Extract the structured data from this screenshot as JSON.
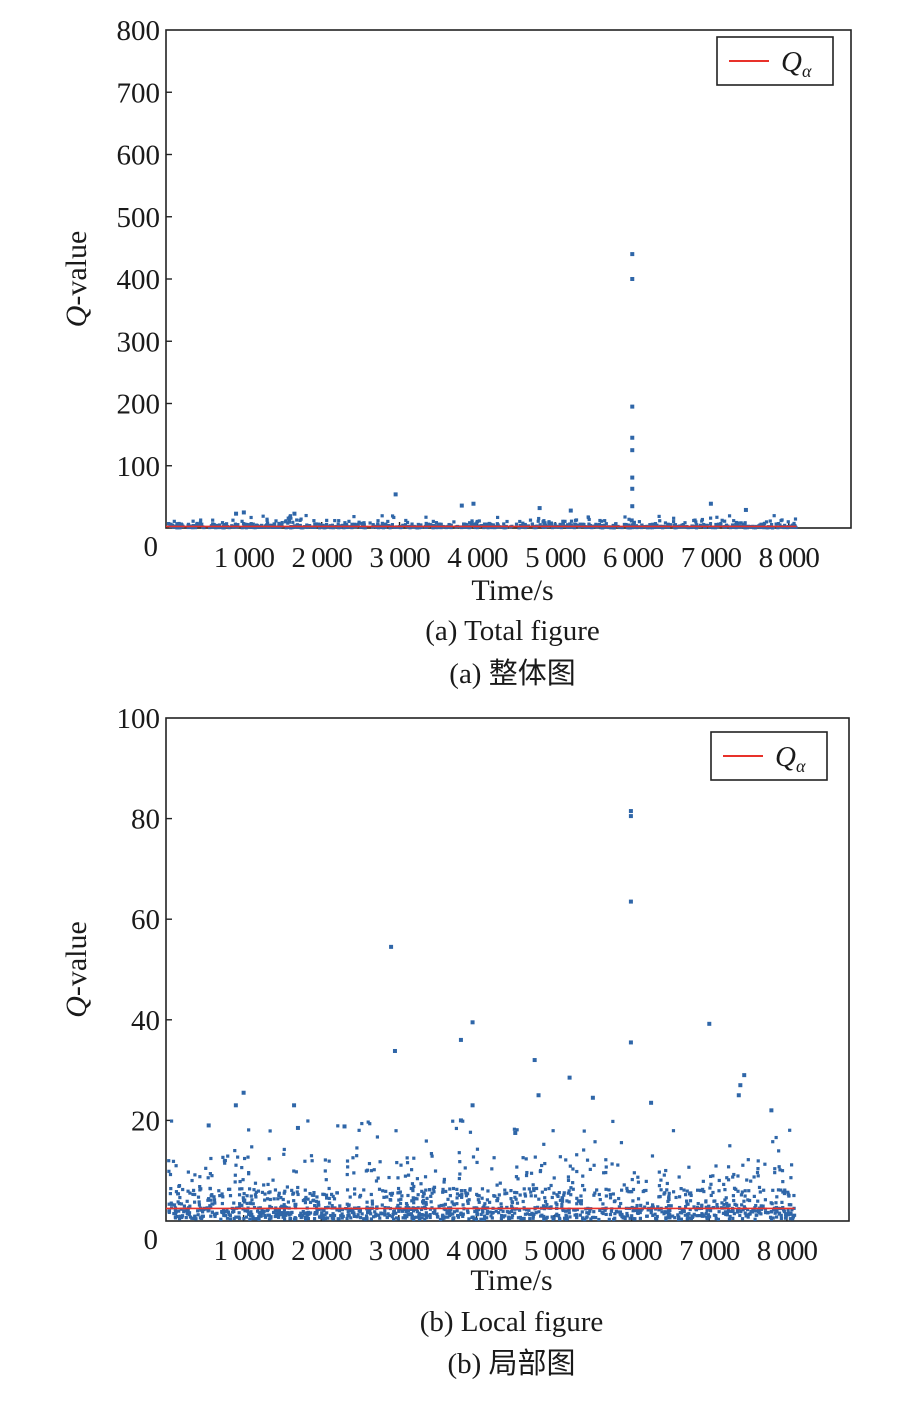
{
  "chart_data": [
    {
      "type": "scatter",
      "title": "",
      "xlabel": "Time/s",
      "ylabel_italic": "Q",
      "ylabel_rest": "-value",
      "xlim": [
        0,
        8800
      ],
      "ylim": [
        0,
        800
      ],
      "xticks": [
        1000,
        2000,
        3000,
        4000,
        5000,
        6000,
        7000,
        8000
      ],
      "xtick_labels": [
        "1 000",
        "2 000",
        "3 000",
        "4 000",
        "5 000",
        "6 000",
        "7 000",
        "8 000"
      ],
      "yticks": [
        0,
        100,
        200,
        300,
        400,
        500,
        600,
        700,
        800
      ],
      "ytick_labels": [
        "0",
        "100",
        "200",
        "300",
        "400",
        "500",
        "600",
        "700",
        "800"
      ],
      "grid": false,
      "legend_position": "top-right",
      "legend": {
        "symbol": "Q",
        "subscript": "α"
      },
      "threshold": {
        "name": "Qα",
        "value": 2.5,
        "color": "#e8312a"
      },
      "point_color": "#2f66a8",
      "highlight_points": [
        {
          "x": 5990,
          "y": 440
        },
        {
          "x": 5990,
          "y": 400
        },
        {
          "x": 5990,
          "y": 195
        },
        {
          "x": 5990,
          "y": 145
        },
        {
          "x": 5990,
          "y": 125
        },
        {
          "x": 5990,
          "y": 81
        },
        {
          "x": 5990,
          "y": 63
        },
        {
          "x": 5990,
          "y": 35
        },
        {
          "x": 2950,
          "y": 54
        },
        {
          "x": 3950,
          "y": 39
        },
        {
          "x": 7000,
          "y": 39
        },
        {
          "x": 3800,
          "y": 36
        },
        {
          "x": 4800,
          "y": 32
        },
        {
          "x": 5200,
          "y": 28
        },
        {
          "x": 7450,
          "y": 29
        },
        {
          "x": 1000,
          "y": 25
        },
        {
          "x": 900,
          "y": 23
        },
        {
          "x": 1650,
          "y": 23
        }
      ],
      "caption_en": "(a) Total figure",
      "caption_cn": "(a) 整体图"
    },
    {
      "type": "scatter",
      "title": "",
      "xlabel": "Time/s",
      "ylabel_italic": "Q",
      "ylabel_rest": "-value",
      "xlim": [
        0,
        8800
      ],
      "ylim": [
        0,
        100
      ],
      "xticks": [
        1000,
        2000,
        3000,
        4000,
        5000,
        6000,
        7000,
        8000
      ],
      "xtick_labels": [
        "1 000",
        "2 000",
        "3 000",
        "4 000",
        "5 000",
        "6 000",
        "7 000",
        "8 000"
      ],
      "yticks": [
        0,
        20,
        40,
        60,
        80,
        100
      ],
      "ytick_labels": [
        "0",
        "20",
        "40",
        "60",
        "80",
        "100"
      ],
      "grid": false,
      "legend_position": "top-right",
      "legend": {
        "symbol": "Q",
        "subscript": "α"
      },
      "threshold": {
        "name": "Qα",
        "value": 2.5,
        "color": "#e8312a"
      },
      "point_color": "#2f66a8",
      "highlight_points": [
        {
          "x": 5990,
          "y": 81.5
        },
        {
          "x": 5990,
          "y": 80.5
        },
        {
          "x": 5990,
          "y": 63.5
        },
        {
          "x": 5990,
          "y": 35.5
        },
        {
          "x": 2900,
          "y": 54.5
        },
        {
          "x": 2950,
          "y": 33.8
        },
        {
          "x": 3950,
          "y": 39.5
        },
        {
          "x": 7000,
          "y": 39.2
        },
        {
          "x": 3800,
          "y": 36
        },
        {
          "x": 4750,
          "y": 32
        },
        {
          "x": 5200,
          "y": 28.5
        },
        {
          "x": 7450,
          "y": 29
        },
        {
          "x": 7400,
          "y": 27
        },
        {
          "x": 7380,
          "y": 25
        },
        {
          "x": 4800,
          "y": 25
        },
        {
          "x": 1000,
          "y": 25.5
        },
        {
          "x": 900,
          "y": 23
        },
        {
          "x": 1650,
          "y": 23
        },
        {
          "x": 3950,
          "y": 23
        },
        {
          "x": 5500,
          "y": 24.5
        },
        {
          "x": 6250,
          "y": 23.5
        },
        {
          "x": 7800,
          "y": 22
        },
        {
          "x": 3800,
          "y": 20
        },
        {
          "x": 2300,
          "y": 18.8
        },
        {
          "x": 550,
          "y": 19
        },
        {
          "x": 1700,
          "y": 18.5
        },
        {
          "x": 4500,
          "y": 17.5
        }
      ],
      "caption_en": "(b) Local figure",
      "caption_cn": "(b) 局部图"
    }
  ]
}
